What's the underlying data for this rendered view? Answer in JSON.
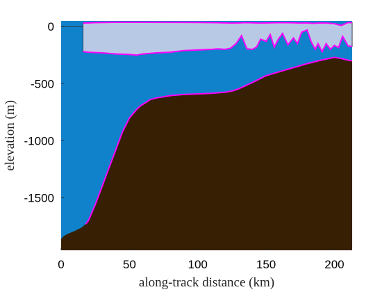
{
  "chart_data": {
    "type": "area",
    "xlabel": "along-track distance (km)",
    "ylabel": "elevation (m)",
    "xlim": [
      0,
      213
    ],
    "ylim": [
      -1960,
      50
    ],
    "x_ticks": [
      0,
      50,
      100,
      150,
      200
    ],
    "y_ticks": [
      0,
      -500,
      -1000,
      -1500
    ],
    "grid": false,
    "legend": "none",
    "colors": {
      "water": "#1082cb",
      "ice": "#b8c9e6",
      "bed": "#361f03",
      "outline": "#ff00ff",
      "edge": "#2b3a4a"
    },
    "series": [
      {
        "role": "ice-surface",
        "x": [
          16,
          25,
          40,
          60,
          80,
          100,
          115,
          125,
          130,
          135,
          140,
          145,
          150,
          160,
          170,
          175,
          180,
          185,
          190,
          195,
          200,
          205,
          210,
          213
        ],
        "y": [
          30,
          35,
          38,
          38,
          37,
          36,
          34,
          30,
          32,
          35,
          33,
          30,
          32,
          35,
          33,
          30,
          32,
          28,
          32,
          30,
          25,
          10,
          35,
          35
        ]
      },
      {
        "role": "ice-base",
        "x": [
          16,
          20,
          30,
          40,
          50,
          55,
          60,
          70,
          80,
          90,
          100,
          110,
          115,
          120,
          124,
          128,
          132,
          136,
          140,
          143,
          146,
          150,
          153,
          156,
          159,
          162,
          166,
          170,
          173,
          176,
          180,
          183,
          186,
          188,
          191,
          194,
          197,
          200,
          203,
          206,
          210,
          213
        ],
        "y": [
          -220,
          -225,
          -230,
          -240,
          -245,
          -250,
          -240,
          -230,
          -225,
          -210,
          -205,
          -200,
          -195,
          -200,
          -190,
          -150,
          -80,
          -195,
          -200,
          -180,
          -110,
          -130,
          -70,
          -180,
          -110,
          -60,
          -160,
          -100,
          -150,
          -50,
          -30,
          -135,
          -200,
          -150,
          -220,
          -150,
          -200,
          -165,
          -185,
          -85,
          -170,
          -175
        ]
      },
      {
        "role": "bed",
        "x": [
          0,
          2,
          5,
          10,
          15,
          18,
          20,
          25,
          30,
          35,
          40,
          45,
          50,
          55,
          58,
          60,
          62,
          65,
          70,
          75,
          80,
          90,
          100,
          110,
          120,
          125,
          130,
          140,
          150,
          160,
          170,
          180,
          190,
          200,
          205,
          210,
          213
        ],
        "y": [
          -1860,
          -1835,
          -1815,
          -1790,
          -1760,
          -1730,
          -1700,
          -1560,
          -1400,
          -1240,
          -1080,
          -920,
          -800,
          -730,
          -695,
          -680,
          -665,
          -640,
          -625,
          -615,
          -605,
          -595,
          -590,
          -585,
          -575,
          -565,
          -545,
          -490,
          -430,
          -395,
          -360,
          -325,
          -295,
          -270,
          -280,
          -295,
          -300
        ]
      },
      {
        "role": "floating-ice-front",
        "x": [
          0,
          16
        ],
        "y": [
          0,
          0
        ]
      }
    ]
  }
}
